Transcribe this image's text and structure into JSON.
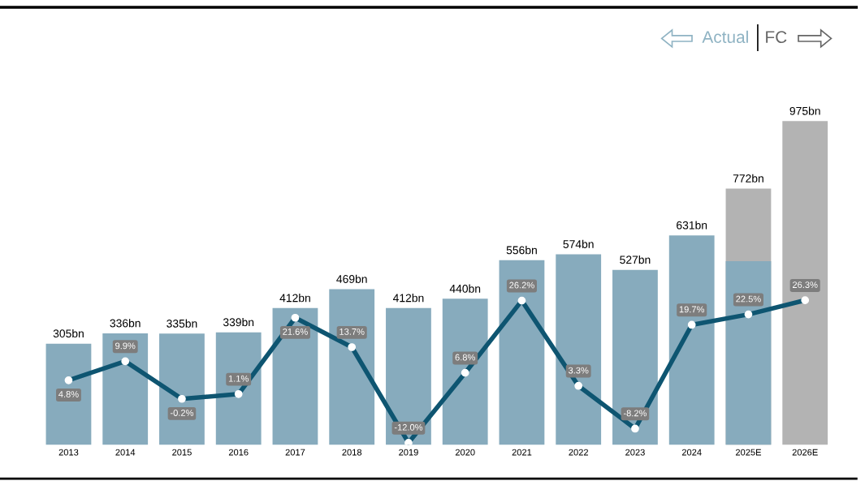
{
  "chart_data": {
    "type": "bar",
    "categories": [
      "2013",
      "2014",
      "2015",
      "2016",
      "2017",
      "2018",
      "2019",
      "2020",
      "2021",
      "2022",
      "2023",
      "2024",
      "2025E",
      "2026E"
    ],
    "series": [
      {
        "color": "#b3b3b3",
        "values": [
          null,
          null,
          null,
          null,
          null,
          null,
          null,
          null,
          null,
          null,
          null,
          null,
          772,
          975
        ],
        "value_labels": [
          null,
          null,
          null,
          null,
          null,
          null,
          null,
          null,
          null,
          null,
          null,
          null,
          "772bn",
          "975bn"
        ]
      },
      {
        "color": "#87abbd",
        "values": [
          305,
          336,
          335,
          339,
          412,
          469,
          412,
          440,
          556,
          574,
          527,
          631,
          553,
          null
        ],
        "value_labels": [
          "305bn",
          "336bn",
          "335bn",
          "339bn",
          "412bn",
          "469bn",
          "412bn",
          "440bn",
          "556bn",
          "574bn",
          "527bn",
          "631bn",
          null,
          null
        ]
      },
      {
        "type": "line",
        "axis": "y2",
        "color": "#0e5571",
        "marker": "circle",
        "values": [
          4.8,
          9.9,
          -0.2,
          1.1,
          21.6,
          13.7,
          -12.0,
          6.8,
          26.2,
          3.3,
          -8.2,
          19.7,
          22.5,
          26.3
        ],
        "value_labels": [
          "4.8%",
          "9.9%",
          "-0.2%",
          "1.1%",
          "21.6%",
          "13.7%",
          "-12.0%",
          "6.8%",
          "26.2%",
          "3.3%",
          "-8.2%",
          "19.7%",
          "22.5%",
          "26.3%"
        ]
      }
    ],
    "tick_labels": "x",
    "annotations": [
      "Actual",
      "FC"
    ]
  }
}
